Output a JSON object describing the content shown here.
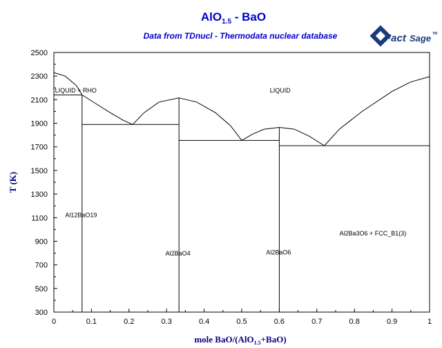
{
  "chart_data": {
    "type": "phase-diagram",
    "title_main": "AlO",
    "title_sub": "1.5",
    "title_rest": " - BaO",
    "subtitle": "Data from TDnucl - Thermodata nuclear database",
    "logo_word_1": "Fact",
    "logo_word_2": "Sage",
    "logo_mark": "TM",
    "xlabel_pre": "mole BaO/(AlO",
    "xlabel_sub": "1.5",
    "xlabel_post": "+BaO)",
    "ylabel": "T (K)",
    "xlim": [
      0,
      1
    ],
    "ylim": [
      300,
      2500
    ],
    "xticks": [
      0,
      0.1,
      0.2,
      0.3,
      0.4,
      0.5,
      0.6,
      0.7,
      0.8,
      0.9,
      1
    ],
    "xtick_labels": [
      "0",
      "0.1",
      "0.2",
      "0.3",
      "0.4",
      "0.5",
      "0.6",
      "0.7",
      "0.8",
      "0.9",
      "1"
    ],
    "yticks": [
      300,
      500,
      700,
      900,
      1100,
      1300,
      1500,
      1700,
      1900,
      2100,
      2300,
      2500
    ],
    "ytick_labels": [
      "300",
      "500",
      "700",
      "900",
      "1100",
      "1300",
      "1500",
      "1700",
      "1900",
      "2100",
      "2300",
      "2500"
    ],
    "liquidus_segments": [
      [
        [
          0,
          2330
        ],
        [
          0.03,
          2300
        ],
        [
          0.06,
          2220
        ],
        [
          0.075,
          2140
        ]
      ],
      [
        [
          0.075,
          2140
        ],
        [
          0.11,
          2070
        ],
        [
          0.15,
          1990
        ],
        [
          0.185,
          1925
        ],
        [
          0.21,
          1890
        ]
      ],
      [
        [
          0.21,
          1890
        ],
        [
          0.24,
          1990
        ],
        [
          0.28,
          2080
        ],
        [
          0.333,
          2115
        ]
      ],
      [
        [
          0.333,
          2115
        ],
        [
          0.38,
          2080
        ],
        [
          0.43,
          1990
        ],
        [
          0.47,
          1880
        ],
        [
          0.5,
          1755
        ]
      ],
      [
        [
          0.5,
          1755
        ],
        [
          0.53,
          1810
        ],
        [
          0.56,
          1850
        ],
        [
          0.6,
          1865
        ]
      ],
      [
        [
          0.6,
          1865
        ],
        [
          0.64,
          1850
        ],
        [
          0.68,
          1790
        ],
        [
          0.72,
          1710
        ]
      ],
      [
        [
          0.72,
          1710
        ],
        [
          0.76,
          1850
        ],
        [
          0.82,
          2000
        ],
        [
          0.9,
          2170
        ],
        [
          0.95,
          2250
        ],
        [
          1,
          2295
        ]
      ]
    ],
    "horizontal_lines": [
      {
        "x1": 0,
        "x2": 0.075,
        "y": 2140
      },
      {
        "x1": 0.075,
        "x2": 0.333,
        "y": 1890
      },
      {
        "x1": 0.333,
        "x2": 0.6,
        "y": 1755
      },
      {
        "x1": 0.6,
        "x2": 1,
        "y": 1710
      }
    ],
    "vertical_lines": [
      {
        "x": 0.075,
        "y1": 300,
        "y2": 2140
      },
      {
        "x": 0.333,
        "y1": 300,
        "y2": 2115
      },
      {
        "x": 0.6,
        "y1": 300,
        "y2": 1865
      }
    ],
    "region_labels": [
      {
        "text": "LIQUID + RHO",
        "x": 0.003,
        "y": 2160
      },
      {
        "text": "LIQUID",
        "x": 0.575,
        "y": 2160
      },
      {
        "text": "Al12BaO19",
        "x": 0.03,
        "y": 1105
      },
      {
        "text": "Al2BaO4",
        "x": 0.297,
        "y": 780
      },
      {
        "text": "Al2BaO6",
        "x": 0.565,
        "y": 790
      },
      {
        "text": "Al2Ba3O6 + FCC_B1(3)",
        "x": 0.76,
        "y": 950
      }
    ]
  }
}
